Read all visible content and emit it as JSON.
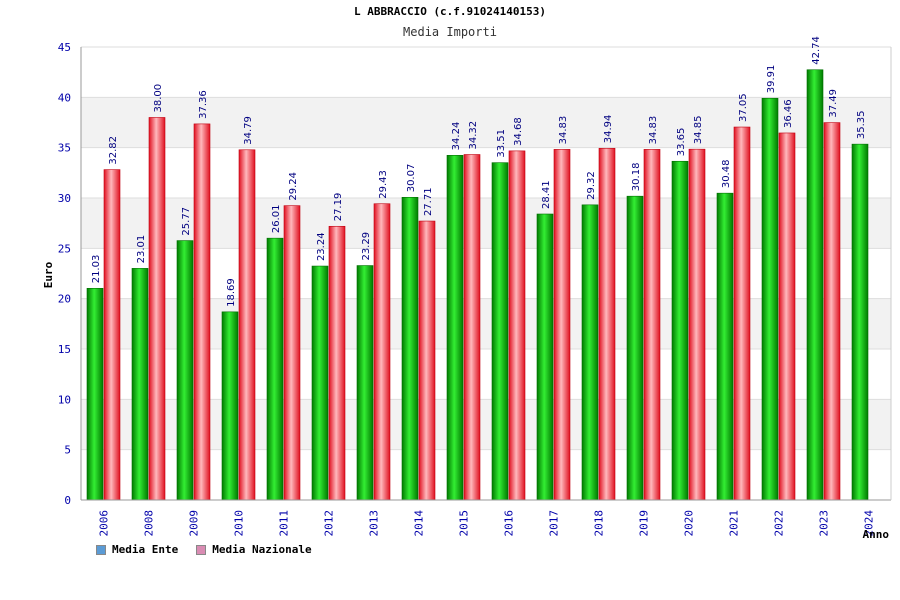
{
  "chart_data": {
    "type": "bar",
    "title": "L ABBRACCIO (c.f.91024140153)",
    "subtitle": "Media Importi",
    "ylabel": "Euro",
    "xlabel": "Anno",
    "ylim": [
      0,
      45
    ],
    "yticks": [
      0,
      5,
      10,
      15,
      20,
      25,
      30,
      35,
      40,
      45
    ],
    "categories": [
      "2006",
      "2008",
      "2009",
      "2010",
      "2011",
      "2012",
      "2013",
      "2014",
      "2015",
      "2016",
      "2017",
      "2018",
      "2019",
      "2020",
      "2021",
      "2022",
      "2023",
      "2024"
    ],
    "series": [
      {
        "name": "Media Ente",
        "color": "#00aa00",
        "values": [
          21.03,
          23.01,
          25.77,
          18.69,
          26.01,
          23.24,
          23.29,
          30.07,
          34.24,
          33.51,
          28.41,
          29.32,
          30.18,
          33.65,
          30.48,
          39.91,
          42.74,
          35.35
        ],
        "labels": [
          "21.03",
          "23.01",
          "25.77",
          "18.69",
          "26.01",
          "23.24",
          "23.29",
          "30.07",
          "34.24",
          "33.51",
          "28.41",
          "29.32",
          "30.18",
          "33.65",
          "30.48",
          "39.91",
          "42.74",
          "35.35"
        ]
      },
      {
        "name": "Media Nazionale",
        "color": "#e8323c",
        "values": [
          32.82,
          38.0,
          37.36,
          34.79,
          29.24,
          27.19,
          29.43,
          27.71,
          34.32,
          34.68,
          34.83,
          34.94,
          34.83,
          34.85,
          37.05,
          36.46,
          37.49,
          null
        ],
        "labels": [
          "32.82",
          "38.00",
          "37.36",
          "34.79",
          "29.24",
          "27.19",
          "29.43",
          "27.71",
          "34.32",
          "34.68",
          "34.83",
          "34.94",
          "34.83",
          "34.85",
          "37.05",
          "36.46",
          "37.49",
          null
        ]
      }
    ],
    "legend": [
      {
        "label": "Media Ente",
        "swatch_color": "#5b9bd5"
      },
      {
        "label": "Media Nazionale",
        "swatch_color": "#d98cb3"
      }
    ],
    "legend_position": "bottom-left",
    "grid": true
  }
}
